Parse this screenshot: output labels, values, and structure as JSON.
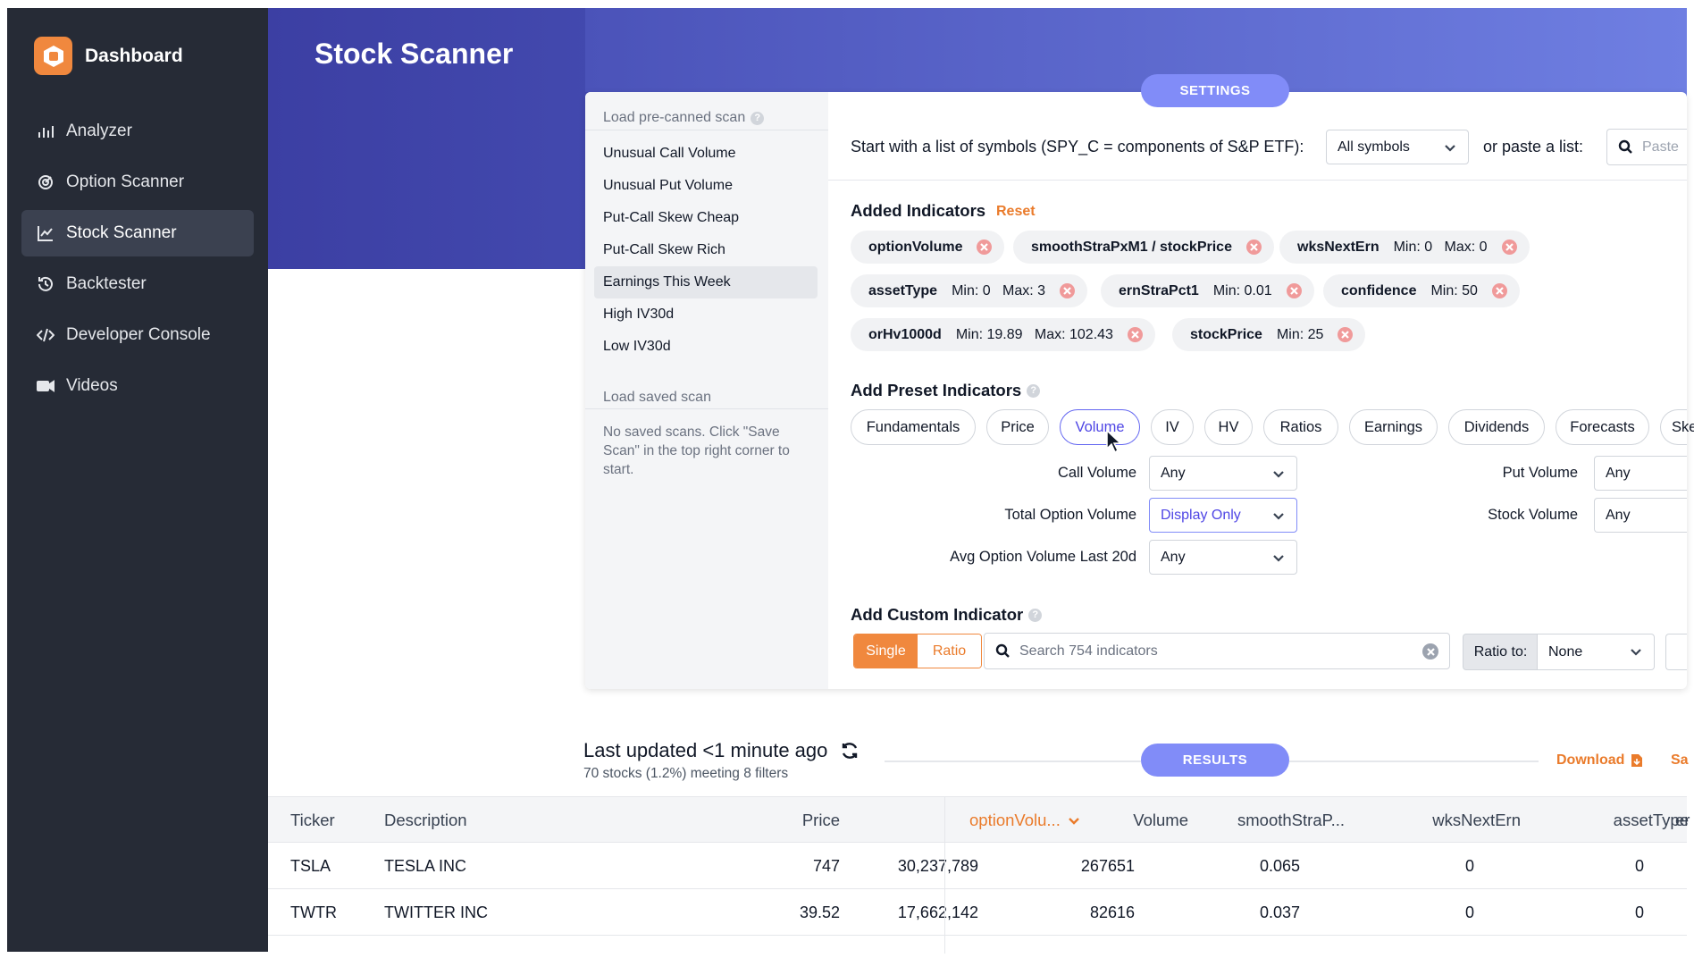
{
  "sidebar": {
    "brand": "Dashboard",
    "items": [
      {
        "label": "Analyzer",
        "icon": "bar-chart-icon"
      },
      {
        "label": "Option Scanner",
        "icon": "radar-icon"
      },
      {
        "label": "Stock Scanner",
        "icon": "line-chart-icon",
        "active": true
      },
      {
        "label": "Backtester",
        "icon": "history-icon"
      },
      {
        "label": "Developer Console",
        "icon": "code-icon"
      },
      {
        "label": "Videos",
        "icon": "video-camera-icon"
      }
    ]
  },
  "header": {
    "title": "Stock Scanner"
  },
  "settings_tab": "SETTINGS",
  "scans": {
    "precanned_label": "Load pre-canned scan",
    "items": [
      "Unusual Call Volume",
      "Unusual Put Volume",
      "Put-Call Skew Cheap",
      "Put-Call Skew Rich",
      "Earnings This Week",
      "High IV30d",
      "Low IV30d"
    ],
    "selected": "Earnings This Week",
    "saved_label": "Load saved scan",
    "saved_note": "No saved scans. Click \"Save Scan\" in the top right corner to start."
  },
  "symbols": {
    "label": "Start with a list of symbols (SPY_C = components of S&P ETF):",
    "selected": "All symbols",
    "paste_label": "or paste a list:",
    "paste_placeholder": "Paste"
  },
  "added_indicators": {
    "title": "Added Indicators",
    "reset": "Reset",
    "chips": [
      {
        "name": "optionVolume",
        "range": ""
      },
      {
        "name": "smoothStraPxM1 / stockPrice",
        "range": ""
      },
      {
        "name": "wksNextErn",
        "range": "Min: 0   Max: 0"
      },
      {
        "name": "assetType",
        "range": "Min: 0   Max: 3"
      },
      {
        "name": "ernStraPct1",
        "range": "Min: 0.01"
      },
      {
        "name": "confidence",
        "range": "Min: 50"
      },
      {
        "name": "orHv1000d",
        "range": "Min: 19.89   Max: 102.43"
      },
      {
        "name": "stockPrice",
        "range": "Min: 25"
      }
    ]
  },
  "preset": {
    "title": "Add Preset Indicators",
    "tabs": [
      "Fundamentals",
      "Price",
      "Volume",
      "IV",
      "HV",
      "Ratios",
      "Earnings",
      "Dividends",
      "Forecasts",
      "Ske"
    ],
    "active": "Volume",
    "fields": [
      {
        "label": "Call Volume",
        "value": "Any"
      },
      {
        "label": "Total Option Volume",
        "value": "Display Only"
      },
      {
        "label": "Avg Option Volume Last 20d",
        "value": "Any"
      },
      {
        "label": "Put Volume",
        "value": "Any"
      },
      {
        "label": "Stock Volume",
        "value": "Any"
      }
    ]
  },
  "custom": {
    "title": "Add Custom Indicator",
    "single": "Single",
    "ratio": "Ratio",
    "search_placeholder": "Search 754 indicators",
    "ratio_to_label": "Ratio to:",
    "ratio_to_value": "None"
  },
  "results": {
    "updated": "Last updated <1 minute ago",
    "stats": "70 stocks (1.2%) meeting 8 filters",
    "tab": "RESULTS",
    "download": "Download",
    "save_partial": "Sa",
    "columns": [
      "Ticker",
      "Description",
      "Price",
      "Volume",
      "optionVolu...",
      "smoothStraP...",
      "wksNextErn",
      "assetType",
      "er"
    ],
    "sorted_column": "optionVolu...",
    "rows": [
      [
        "TSLA",
        "TESLA INC",
        "747",
        "30,237,789",
        "267651",
        "0.065",
        "0",
        "0"
      ],
      [
        "TWTR",
        "TWITTER INC",
        "39.52",
        "17,662,142",
        "82616",
        "0.037",
        "0",
        "0"
      ]
    ]
  },
  "colors": {
    "sidebar": "#262b36",
    "accent": "#818cf8",
    "orange": "#ea7b2b",
    "banner": "#3c3fa3"
  }
}
